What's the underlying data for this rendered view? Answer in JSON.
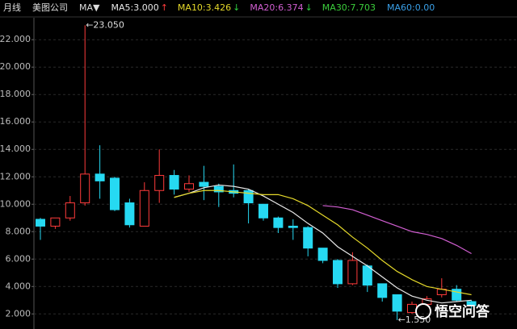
{
  "chart_data": {
    "type": "candlestick",
    "period": "月线",
    "company": "美图公司",
    "indicator": "MA▼",
    "up_color": "#ff3b3b",
    "down_color": "#26d9f2",
    "high_label": "←23.050",
    "low_label": "←1.550",
    "watermark": "悟空问答",
    "grid": true,
    "ylim": [
      0.9,
      23.6
    ],
    "yticks": [
      {
        "value": 2,
        "label": "2.000"
      },
      {
        "value": 4,
        "label": "4.000"
      },
      {
        "value": 6,
        "label": "6.000"
      },
      {
        "value": 8,
        "label": "8.000"
      },
      {
        "value": 10,
        "label": "10.000"
      },
      {
        "value": 12,
        "label": "12.000"
      },
      {
        "value": 14,
        "label": "14.000"
      },
      {
        "value": 16,
        "label": "16.000"
      },
      {
        "value": 18,
        "label": "18.000"
      },
      {
        "value": 20,
        "label": "20.000"
      },
      {
        "value": 22,
        "label": "22.000"
      }
    ],
    "categories": [
      null,
      null,
      null,
      null,
      null,
      null,
      null,
      null,
      null,
      null,
      null,
      null,
      null,
      null,
      null,
      null,
      null,
      null,
      null,
      null,
      null,
      null,
      null,
      null,
      null,
      null,
      null,
      null,
      null,
      null
    ],
    "open": [
      8.9,
      8.4,
      9.0,
      10.1,
      12.2,
      11.9,
      10.1,
      8.4,
      11.0,
      12.1,
      11.1,
      11.6,
      11.3,
      11.0,
      11.0,
      10.0,
      9.0,
      8.4,
      8.3,
      6.8,
      5.9,
      4.2,
      5.5,
      4.2,
      3.4,
      2.1,
      2.7,
      3.4,
      3.8,
      2.9
    ],
    "high": [
      9.0,
      9.0,
      10.6,
      23.05,
      14.3,
      12.0,
      10.4,
      11.6,
      14.0,
      12.5,
      12.1,
      12.8,
      11.5,
      12.9,
      11.1,
      10.0,
      9.1,
      8.9,
      8.4,
      6.8,
      6.0,
      6.5,
      5.6,
      4.2,
      3.4,
      2.9,
      3.3,
      4.6,
      4.1,
      3.0
    ],
    "low": [
      7.4,
      8.2,
      8.8,
      9.9,
      10.4,
      9.5,
      8.3,
      8.4,
      10.1,
      10.7,
      10.9,
      10.3,
      9.8,
      10.5,
      8.6,
      8.8,
      7.9,
      7.4,
      6.2,
      5.7,
      3.9,
      4.1,
      3.6,
      2.9,
      1.55,
      2.0,
      2.6,
      3.2,
      2.9,
      2.4
    ],
    "close": [
      8.4,
      9.0,
      10.1,
      12.2,
      11.7,
      9.6,
      8.5,
      11.0,
      12.1,
      11.1,
      11.5,
      11.3,
      10.9,
      10.8,
      10.1,
      9.0,
      8.3,
      8.3,
      6.8,
      5.9,
      4.2,
      5.9,
      4.1,
      3.2,
      2.2,
      2.7,
      3.1,
      3.8,
      3.0,
      2.6
    ],
    "series": [
      {
        "name": "MA5:3.000",
        "trend": "↑",
        "trend_color": "#ff3b3b",
        "color": "#e8e8e8",
        "values": [
          null,
          null,
          null,
          null,
          null,
          null,
          null,
          null,
          null,
          10.5,
          10.8,
          11.2,
          11.4,
          11.3,
          11.1,
          10.6,
          10.0,
          9.4,
          8.6,
          7.9,
          6.9,
          6.2,
          5.5,
          4.7,
          3.9,
          3.3,
          3.0,
          2.8,
          2.9,
          3.0
        ]
      },
      {
        "name": "MA10:3.426",
        "trend": "↓",
        "trend_color": "#2ecc40",
        "color": "#e5d92a",
        "values": [
          null,
          null,
          null,
          null,
          null,
          null,
          null,
          null,
          null,
          10.5,
          10.8,
          11.0,
          11.0,
          10.9,
          10.8,
          10.7,
          10.7,
          10.4,
          9.9,
          9.2,
          8.5,
          7.6,
          6.8,
          5.9,
          5.1,
          4.5,
          4.0,
          3.8,
          3.6,
          3.4
        ]
      },
      {
        "name": "MA20:6.374",
        "trend": "↓",
        "trend_color": "#2ecc40",
        "color": "#d25fd2",
        "values": [
          null,
          null,
          null,
          null,
          null,
          null,
          null,
          null,
          null,
          null,
          null,
          null,
          null,
          null,
          null,
          null,
          null,
          null,
          null,
          9.9,
          9.8,
          9.6,
          9.2,
          8.8,
          8.4,
          8.0,
          7.8,
          7.5,
          7.0,
          6.4
        ]
      }
    ],
    "legend_extra": [
      {
        "name": "MA30:7.703",
        "color": "#3ccf3c"
      },
      {
        "name": "MA60:0.00",
        "color": "#3aa0e8"
      }
    ]
  }
}
